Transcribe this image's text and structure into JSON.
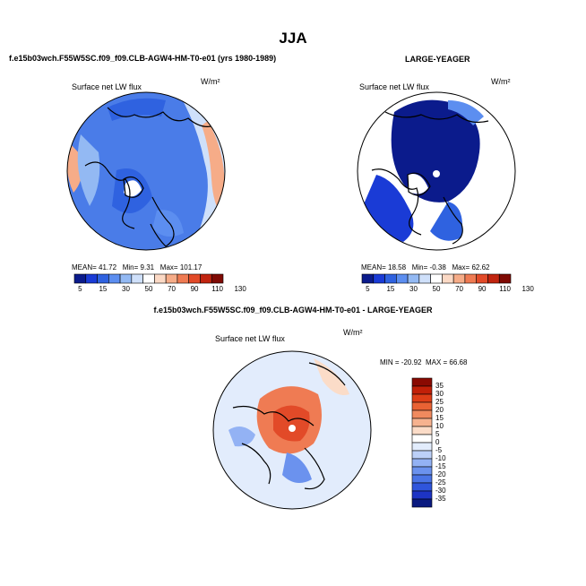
{
  "page": {
    "main_title": "JJA"
  },
  "colors": {
    "scale": [
      "#0b1b8c",
      "#1a3bd6",
      "#2f62e0",
      "#5c8ef0",
      "#93b9f3",
      "#cfe0fa",
      "#ffffff",
      "#fbd9c5",
      "#f6ac88",
      "#ef7b53",
      "#e24a28",
      "#c1240f",
      "#7f0a04"
    ],
    "diff_scale": [
      "#0a1a80",
      "#1d34c4",
      "#2f55dc",
      "#4a74e6",
      "#6b92ee",
      "#93b2f4",
      "#bcd0f8",
      "#e2ecfc",
      "#ffffff",
      "#fbdcc8",
      "#f6b28f",
      "#f08a5e",
      "#e96234",
      "#de3e17",
      "#c22008",
      "#8a0a02"
    ]
  },
  "chart_data": [
    {
      "type": "heatmap",
      "title": "f.e15b03wch.F55W5SC.f09_f09.CLB-AGW4-HM-T0-e01 (yrs 1980-1989)",
      "label": "Surface net LW flux",
      "units": "W/m²",
      "stats": {
        "mean_label": "MEAN=",
        "mean": "41.72",
        "min_label": "Min=",
        "min": "9.31",
        "max_label": "Max=",
        "max": "101.17"
      },
      "colorbar_ticks": [
        "5",
        "15",
        "30",
        "50",
        "70",
        "90",
        "110",
        "130"
      ]
    },
    {
      "type": "heatmap",
      "title": "LARGE-YEAGER",
      "label": "Surface net LW flux",
      "units": "W/m²",
      "stats": {
        "mean_label": "MEAN=",
        "mean": "18.58",
        "min_label": "Min=",
        "min": "-0.38",
        "max_label": "Max=",
        "max": "62.62"
      },
      "colorbar_ticks": [
        "5",
        "15",
        "30",
        "50",
        "70",
        "90",
        "110",
        "130"
      ]
    },
    {
      "type": "heatmap",
      "title": "f.e15b03wch.F55W5SC.f09_f09.CLB-AGW4-HM-T0-e01 - LARGE-YEAGER",
      "label": "Surface net LW flux",
      "units": "W/m²",
      "stats": {
        "min_label": "MIN =",
        "min": "-20.92",
        "max_label": "MAX =",
        "max": "66.68"
      },
      "colorbar_ticks": [
        "35",
        "30",
        "25",
        "20",
        "15",
        "10",
        "5",
        "0",
        "-5",
        "-10",
        "-15",
        "-20",
        "-25",
        "-30",
        "-35"
      ]
    }
  ]
}
